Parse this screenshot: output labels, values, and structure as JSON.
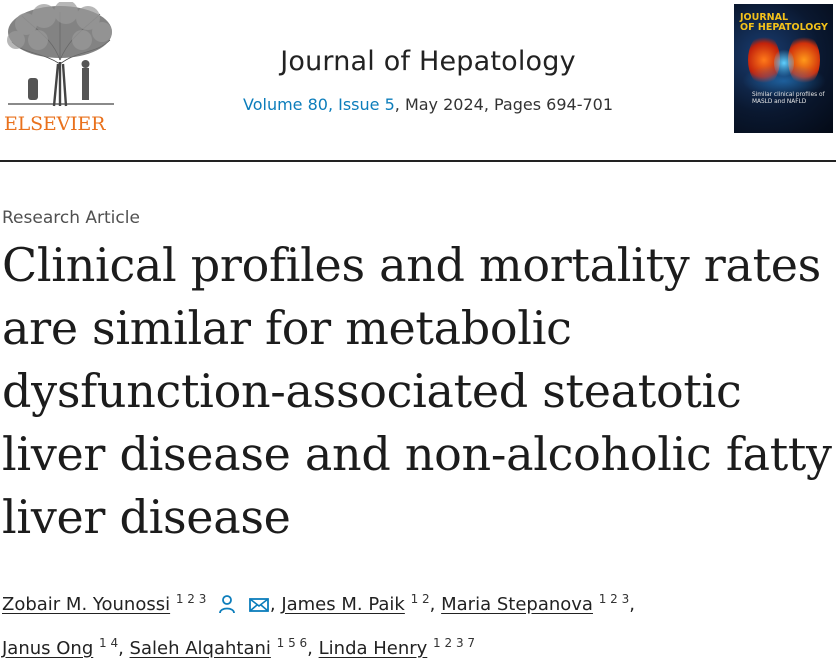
{
  "header": {
    "publisher": "ELSEVIER",
    "journal_title": "Journal of Hepatology",
    "volume_issue": "Volume 80, Issue 5",
    "date_pages": ", May 2024, Pages 694-701",
    "cover": {
      "title_line1": "JOURNAL",
      "title_line2": "OF HEPATOLOGY",
      "subtitle": "Similar clinical profiles of MASLD and NAFLD"
    }
  },
  "article": {
    "type": "Research Article",
    "title": "Clinical profiles and mortality rates are similar for metabolic dysfunction-associated steatotic liver disease and non-alcoholic fatty liver disease"
  },
  "authors": [
    {
      "name": "Zobair M. Younossi",
      "sup": "1 2 3"
    },
    {
      "name": "James M. Paik",
      "sup": "1 2"
    },
    {
      "name": "Maria Stepanova",
      "sup": "1 2 3"
    },
    {
      "name": "Janus Ong",
      "sup": "1 4"
    },
    {
      "name": "Saleh Alqahtani",
      "sup": "1 5 6"
    },
    {
      "name": "Linda Henry",
      "sup": "1 2 3 7"
    }
  ],
  "colors": {
    "link": "#0c7dbb",
    "elsevier_orange": "#e9711c",
    "cover_yellow": "#f4c21a"
  }
}
